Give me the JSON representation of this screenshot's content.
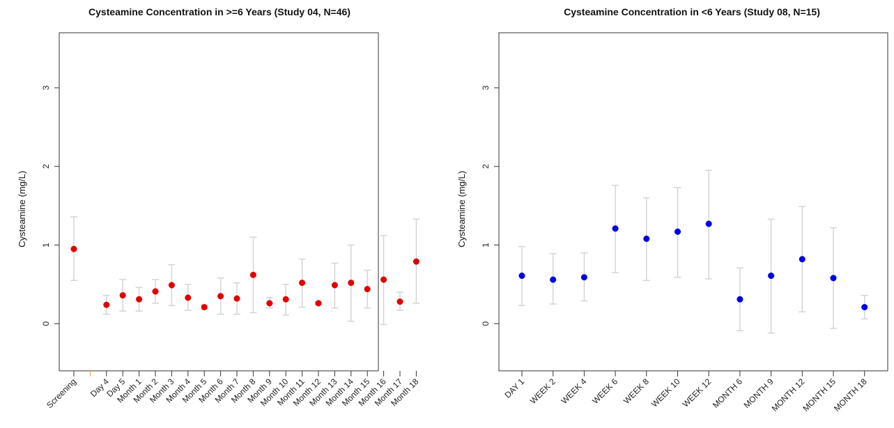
{
  "chart_data": [
    {
      "type": "scatter",
      "title": "Cysteamine Concentration in >=6 Years (Study 04, N=46)",
      "xlabel": "",
      "ylabel": "Cysteamine (mg/L)",
      "ylim": [
        -0.6,
        3.7
      ],
      "yticks": [
        "0",
        "1",
        "2",
        "3"
      ],
      "grid": false,
      "point_color": "#e00000",
      "errorbar_color": "#d2d2d2",
      "categories": [
        "Screening",
        "",
        "Day 4",
        "Day 5",
        "Month 1",
        "Month 2",
        "Month 3",
        "Month 4",
        "Month 5",
        "Month 6",
        "Month 7",
        "Month 8",
        "Month 9",
        "Month 10",
        "Month 11",
        "Month 12",
        "Month 13",
        "Month 14",
        "Month 15",
        "Month 16",
        "Month 17",
        "Month 18"
      ],
      "values": [
        0.95,
        null,
        0.24,
        0.36,
        0.31,
        0.41,
        0.49,
        0.33,
        0.21,
        0.35,
        0.32,
        0.62,
        0.26,
        0.31,
        0.52,
        0.26,
        0.49,
        0.52,
        0.44,
        0.56,
        0.28,
        0.79
      ],
      "lower": [
        0.55,
        null,
        0.12,
        0.16,
        0.16,
        0.26,
        0.23,
        0.17,
        0.18,
        0.12,
        0.12,
        0.14,
        0.2,
        0.11,
        0.21,
        0.24,
        0.2,
        0.03,
        0.2,
        -0.01,
        0.17,
        0.26
      ],
      "upper": [
        1.36,
        null,
        0.36,
        0.56,
        0.46,
        0.56,
        0.75,
        0.5,
        0.24,
        0.58,
        0.52,
        1.1,
        0.33,
        0.5,
        0.82,
        0.28,
        0.77,
        1.0,
        0.68,
        1.12,
        0.4,
        1.33
      ]
    },
    {
      "type": "scatter",
      "title": "Cysteamine Concentration in <6 Years (Study 08, N=15)",
      "xlabel": "",
      "ylabel": "Cysteamine (mg/L)",
      "ylim": [
        -0.6,
        3.7
      ],
      "yticks": [
        "0",
        "1",
        "2",
        "3"
      ],
      "grid": false,
      "point_color": "#0000e6",
      "errorbar_color": "#d2d2d2",
      "categories": [
        "DAY 1",
        "WEEK 2",
        "WEEK 4",
        "WEEK 6",
        "WEEK 8",
        "WEEK 10",
        "WEEK 12",
        "MONTH 6",
        "MONTH 9",
        "MONTH 12",
        "MONTH 15",
        "MONTH 18"
      ],
      "values": [
        0.61,
        0.56,
        0.59,
        1.21,
        1.08,
        1.17,
        1.27,
        0.31,
        0.61,
        0.82,
        0.58,
        0.21
      ],
      "lower": [
        0.23,
        0.25,
        0.29,
        0.65,
        0.55,
        0.59,
        0.57,
        -0.09,
        -0.12,
        0.15,
        -0.06,
        0.06
      ],
      "upper": [
        0.98,
        0.89,
        0.9,
        1.76,
        1.6,
        1.73,
        1.95,
        0.71,
        1.33,
        1.49,
        1.22,
        0.36
      ]
    }
  ]
}
